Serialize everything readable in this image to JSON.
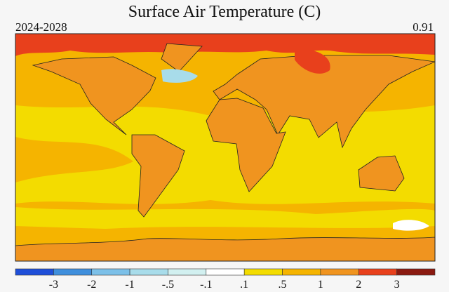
{
  "header": {
    "title": "Surface Air Temperature (C)",
    "period": "2024-2028",
    "global_mean": "0.91"
  },
  "colorbar": {
    "colors": [
      "#1f4fd8",
      "#3f8fdc",
      "#7cc0e8",
      "#a8dcea",
      "#d2f0f0",
      "#ffffff",
      "#f3dc00",
      "#f5b400",
      "#f0941f",
      "#e8401c",
      "#8a1a10"
    ],
    "labels": [
      "-3",
      "-2",
      "-1",
      "-.5",
      "-.1",
      ".1",
      ".5",
      "1",
      "2",
      "3"
    ]
  }
}
